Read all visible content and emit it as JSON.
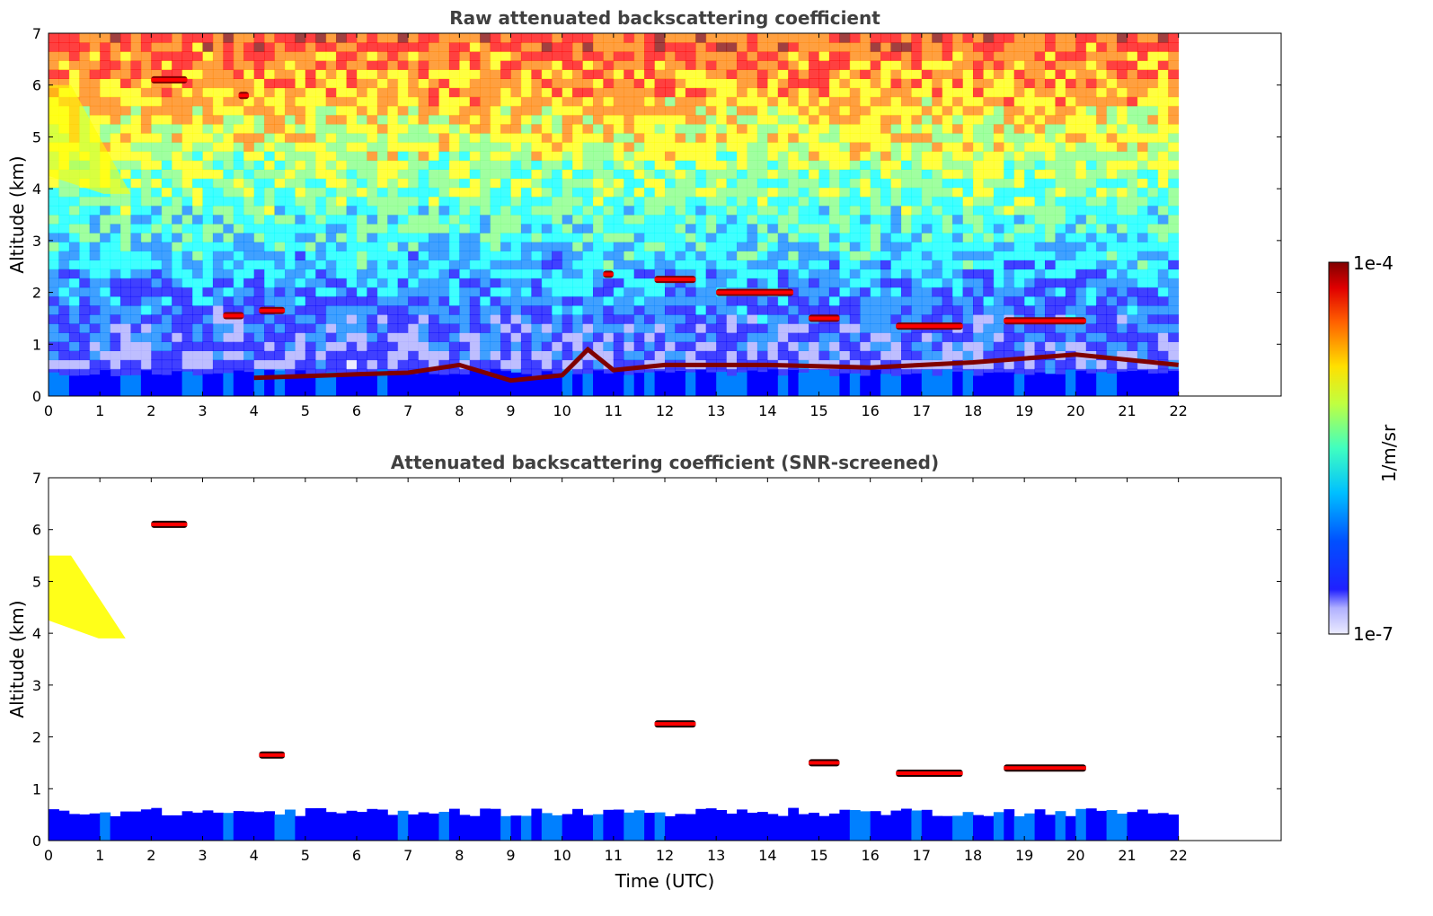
{
  "chart_data": [
    {
      "type": "heatmap",
      "title": "Raw attenuated backscattering coefficient",
      "xlabel": "",
      "ylabel": "Altitude (km)",
      "xlim": [
        0,
        24
      ],
      "ylim": [
        0,
        7
      ],
      "data_x_range": [
        0,
        22
      ],
      "x_ticks": [
        "0",
        "1",
        "2",
        "3",
        "4",
        "5",
        "6",
        "7",
        "8",
        "9",
        "10",
        "11",
        "12",
        "13",
        "14",
        "15",
        "16",
        "17",
        "18",
        "19",
        "20",
        "21",
        "22"
      ],
      "y_ticks": [
        "0",
        "1",
        "2",
        "3",
        "4",
        "5",
        "6",
        "7"
      ],
      "features": [
        {
          "kind": "boundary_layer",
          "time_range": [
            0,
            22
          ],
          "top_km": 0.45
        },
        {
          "kind": "aerosol_layer_top",
          "points": [
            [
              4,
              0.35
            ],
            [
              6,
              0.42
            ],
            [
              7,
              0.45
            ],
            [
              8,
              0.6
            ],
            [
              9,
              0.3
            ],
            [
              10,
              0.4
            ],
            [
              10.5,
              0.9
            ],
            [
              11,
              0.5
            ],
            [
              12,
              0.6
            ],
            [
              14,
              0.6
            ],
            [
              16,
              0.55
            ],
            [
              18,
              0.65
            ],
            [
              20,
              0.8
            ],
            [
              22,
              0.6
            ]
          ]
        },
        {
          "kind": "cloud",
          "time_range": [
            2.0,
            2.7
          ],
          "altitude_km": 6.1
        },
        {
          "kind": "cloud",
          "time_range": [
            3.7,
            3.9
          ],
          "altitude_km": 5.8
        },
        {
          "kind": "cloud",
          "time_range": [
            4.1,
            4.6
          ],
          "altitude_km": 1.65
        },
        {
          "kind": "cloud",
          "time_range": [
            3.4,
            3.8
          ],
          "altitude_km": 1.55
        },
        {
          "kind": "cloud",
          "time_range": [
            10.8,
            11.0
          ],
          "altitude_km": 2.35
        },
        {
          "kind": "cloud",
          "time_range": [
            11.8,
            12.6
          ],
          "altitude_km": 2.25
        },
        {
          "kind": "cloud",
          "time_range": [
            13.0,
            14.5
          ],
          "altitude_km": 2.0
        },
        {
          "kind": "cloud",
          "time_range": [
            14.8,
            15.4
          ],
          "altitude_km": 1.5
        },
        {
          "kind": "cloud",
          "time_range": [
            16.5,
            17.8
          ],
          "altitude_km": 1.35
        },
        {
          "kind": "cloud",
          "time_range": [
            18.6,
            20.2
          ],
          "altitude_km": 1.45
        },
        {
          "kind": "ice_virga",
          "time_range": [
            0,
            1.6
          ],
          "altitude_range_km": [
            3.9,
            6.0
          ]
        }
      ]
    },
    {
      "type": "heatmap",
      "title": "Attenuated backscattering coefficient (SNR-screened)",
      "xlabel": "Time (UTC)",
      "ylabel": "Altitude (km)",
      "xlim": [
        0,
        24
      ],
      "ylim": [
        0,
        7
      ],
      "data_x_range": [
        0,
        22
      ],
      "x_ticks": [
        "0",
        "1",
        "2",
        "3",
        "4",
        "5",
        "6",
        "7",
        "8",
        "9",
        "10",
        "11",
        "12",
        "13",
        "14",
        "15",
        "16",
        "17",
        "18",
        "19",
        "20",
        "21",
        "22"
      ],
      "y_ticks": [
        "0",
        "1",
        "2",
        "3",
        "4",
        "5",
        "6",
        "7"
      ],
      "features": [
        {
          "kind": "boundary_layer",
          "time_range": [
            0,
            22
          ],
          "top_km": 0.55
        },
        {
          "kind": "cloud",
          "time_range": [
            2.0,
            2.7
          ],
          "altitude_km": 6.1
        },
        {
          "kind": "cloud",
          "time_range": [
            4.1,
            4.6
          ],
          "altitude_km": 1.65
        },
        {
          "kind": "cloud",
          "time_range": [
            11.8,
            12.6
          ],
          "altitude_km": 2.25
        },
        {
          "kind": "cloud",
          "time_range": [
            14.8,
            15.4
          ],
          "altitude_km": 1.5
        },
        {
          "kind": "cloud",
          "time_range": [
            16.5,
            17.8
          ],
          "altitude_km": 1.3
        },
        {
          "kind": "cloud",
          "time_range": [
            18.6,
            20.2
          ],
          "altitude_km": 1.4
        },
        {
          "kind": "ice_virga",
          "time_range": [
            0,
            1.5
          ],
          "altitude_range_km": [
            3.9,
            5.5
          ]
        }
      ]
    }
  ],
  "colorbar": {
    "label": "1/m/sr",
    "max_label": "1e-4",
    "min_label": "1e-7",
    "scale": "log",
    "colormap": "jet",
    "colors": [
      "#e8e8ff",
      "#a8a8ff",
      "#0000ff",
      "#0080ff",
      "#00ffff",
      "#80ff80",
      "#ffff00",
      "#ff8000",
      "#ff0000",
      "#800000"
    ]
  }
}
